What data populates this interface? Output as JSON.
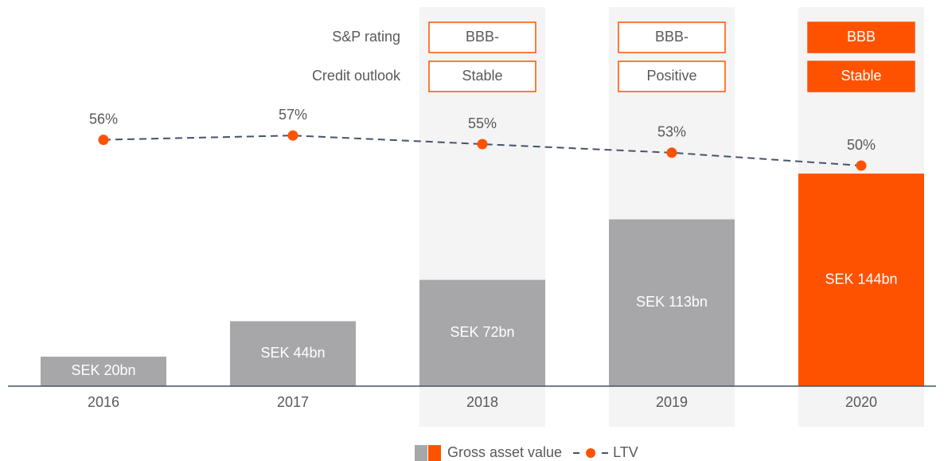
{
  "chart_data": {
    "type": "bar",
    "categories": [
      "2016",
      "2017",
      "2018",
      "2019",
      "2020"
    ],
    "series": [
      {
        "name": "Gross asset value",
        "type": "bar",
        "colors": [
          "#a7a7a9",
          "#a7a7a9",
          "#a7a7a9",
          "#a7a7a9",
          "#ff5200"
        ],
        "values": [
          20,
          44,
          72,
          113,
          144
        ],
        "value_labels": [
          "SEK 20bn",
          "SEK 44bn",
          "SEK 72bn",
          "SEK 113bn",
          "SEK 144bn"
        ]
      },
      {
        "name": "LTV",
        "type": "line",
        "color": "#ff5200",
        "line_color": "#44546a",
        "line_style": "dashed",
        "axis": "y2",
        "values": [
          56,
          57,
          55,
          53,
          50
        ],
        "value_labels": [
          "56%",
          "57%",
          "55%",
          "53%",
          "50%"
        ]
      }
    ],
    "rating_rows": [
      {
        "name": "S&P rating",
        "values": [
          null,
          null,
          "BBB-",
          "BBB-",
          "BBB"
        ]
      },
      {
        "name": "Credit outlook",
        "values": [
          null,
          null,
          "Stable",
          "Positive",
          "Stable"
        ]
      }
    ],
    "legend": "bottom"
  }
}
